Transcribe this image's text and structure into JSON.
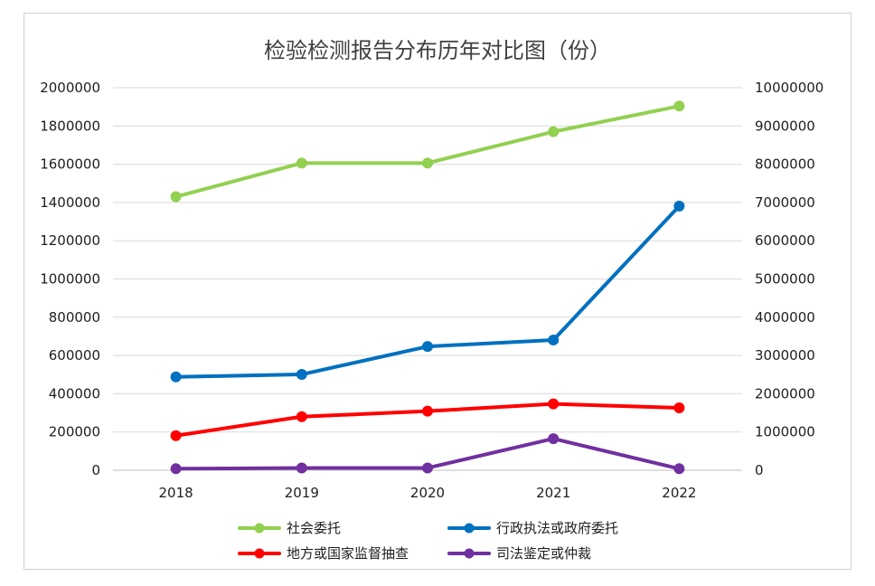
{
  "chart_data": {
    "type": "line",
    "title": "检验检测报告分布历年对比图（份）",
    "categories": [
      "2018",
      "2019",
      "2020",
      "2021",
      "2022"
    ],
    "left_axis": {
      "ylim": [
        0,
        2000000
      ],
      "ticks": [
        "0",
        "200000",
        "400000",
        "600000",
        "800000",
        "1000000",
        "1200000",
        "1400000",
        "1600000",
        "1800000",
        "2000000"
      ]
    },
    "right_axis": {
      "ylim": [
        0,
        10000000
      ],
      "ticks": [
        "0",
        "1000000",
        "2000000",
        "3000000",
        "4000000",
        "5000000",
        "6000000",
        "7000000",
        "8000000",
        "9000000",
        "10000000"
      ]
    },
    "grid": true,
    "legend_position": "bottom",
    "series": [
      {
        "name": "社会委托",
        "axis": "right",
        "color": "#92d050",
        "values": [
          7150000,
          8030000,
          8030000,
          8850000,
          9520000
        ]
      },
      {
        "name": "行政执法或政府委托",
        "axis": "left",
        "color": "#0070c0",
        "values": [
          488000,
          501000,
          647000,
          681000,
          1381000
        ]
      },
      {
        "name": "地方或国家监督抽查",
        "axis": "left",
        "color": "#ff0000",
        "values": [
          181000,
          280000,
          309000,
          347000,
          326000
        ]
      },
      {
        "name": "司法鉴定或仲裁",
        "axis": "left",
        "color": "#7030a0",
        "values": [
          8000,
          12000,
          12000,
          165000,
          8000
        ]
      }
    ]
  }
}
